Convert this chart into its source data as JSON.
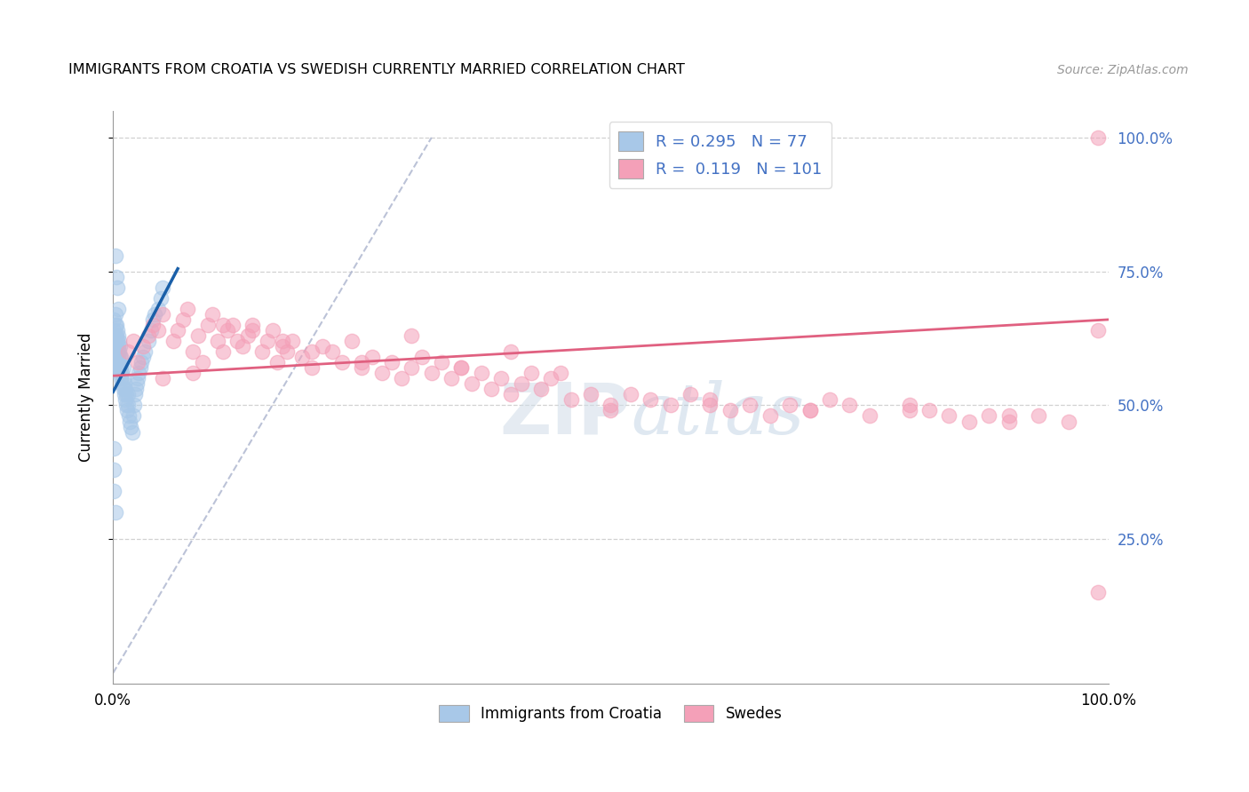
{
  "title": "IMMIGRANTS FROM CROATIA VS SWEDISH CURRENTLY MARRIED CORRELATION CHART",
  "source": "Source: ZipAtlas.com",
  "ylabel": "Currently Married",
  "legend_label1": "Immigrants from Croatia",
  "legend_label2": "Swedes",
  "R1": 0.295,
  "N1": 77,
  "R2": 0.119,
  "N2": 101,
  "watermark_zip": "ZIP",
  "watermark_atlas": "atlas",
  "color_blue": "#a8c8e8",
  "color_pink": "#f4a0b8",
  "color_blue_line": "#1a5fa8",
  "color_pink_line": "#e06080",
  "color_ref_line": "#b0b8d0",
  "xlim": [
    0.0,
    1.0
  ],
  "ylim": [
    -0.02,
    1.05
  ],
  "blue_x": [
    0.001,
    0.001,
    0.001,
    0.001,
    0.001,
    0.002,
    0.002,
    0.002,
    0.002,
    0.002,
    0.003,
    0.003,
    0.003,
    0.003,
    0.003,
    0.004,
    0.004,
    0.004,
    0.004,
    0.005,
    0.005,
    0.005,
    0.005,
    0.006,
    0.006,
    0.006,
    0.006,
    0.007,
    0.007,
    0.007,
    0.008,
    0.008,
    0.008,
    0.009,
    0.009,
    0.01,
    0.01,
    0.01,
    0.011,
    0.011,
    0.012,
    0.012,
    0.013,
    0.013,
    0.014,
    0.015,
    0.015,
    0.016,
    0.017,
    0.018,
    0.019,
    0.02,
    0.021,
    0.022,
    0.023,
    0.024,
    0.025,
    0.026,
    0.027,
    0.028,
    0.03,
    0.032,
    0.035,
    0.038,
    0.04,
    0.042,
    0.045,
    0.048,
    0.05,
    0.002,
    0.001,
    0.001,
    0.001,
    0.002,
    0.003,
    0.004,
    0.005
  ],
  "blue_y": [
    0.58,
    0.6,
    0.62,
    0.64,
    0.66,
    0.59,
    0.61,
    0.63,
    0.65,
    0.67,
    0.57,
    0.59,
    0.61,
    0.63,
    0.65,
    0.58,
    0.6,
    0.62,
    0.64,
    0.57,
    0.59,
    0.61,
    0.63,
    0.56,
    0.58,
    0.6,
    0.62,
    0.57,
    0.59,
    0.61,
    0.55,
    0.57,
    0.59,
    0.54,
    0.56,
    0.53,
    0.55,
    0.57,
    0.52,
    0.54,
    0.51,
    0.53,
    0.5,
    0.52,
    0.49,
    0.5,
    0.52,
    0.48,
    0.47,
    0.46,
    0.45,
    0.48,
    0.5,
    0.52,
    0.53,
    0.54,
    0.55,
    0.56,
    0.57,
    0.58,
    0.59,
    0.6,
    0.62,
    0.64,
    0.66,
    0.67,
    0.68,
    0.7,
    0.72,
    0.3,
    0.34,
    0.38,
    0.42,
    0.78,
    0.74,
    0.72,
    0.68
  ],
  "pink_x": [
    0.015,
    0.02,
    0.025,
    0.03,
    0.035,
    0.04,
    0.045,
    0.05,
    0.06,
    0.065,
    0.07,
    0.075,
    0.08,
    0.085,
    0.09,
    0.095,
    0.1,
    0.105,
    0.11,
    0.115,
    0.12,
    0.125,
    0.13,
    0.135,
    0.14,
    0.15,
    0.155,
    0.16,
    0.165,
    0.17,
    0.175,
    0.18,
    0.19,
    0.2,
    0.21,
    0.22,
    0.23,
    0.24,
    0.25,
    0.26,
    0.27,
    0.28,
    0.29,
    0.3,
    0.31,
    0.32,
    0.33,
    0.34,
    0.35,
    0.36,
    0.37,
    0.38,
    0.39,
    0.4,
    0.41,
    0.42,
    0.43,
    0.44,
    0.46,
    0.48,
    0.5,
    0.52,
    0.54,
    0.56,
    0.58,
    0.6,
    0.62,
    0.64,
    0.66,
    0.68,
    0.7,
    0.72,
    0.74,
    0.76,
    0.8,
    0.82,
    0.84,
    0.86,
    0.88,
    0.9,
    0.93,
    0.96,
    0.99,
    0.05,
    0.08,
    0.11,
    0.14,
    0.17,
    0.2,
    0.25,
    0.3,
    0.35,
    0.4,
    0.45,
    0.5,
    0.6,
    0.7,
    0.8,
    0.9,
    0.99,
    0.99
  ],
  "pink_y": [
    0.6,
    0.62,
    0.58,
    0.61,
    0.63,
    0.65,
    0.64,
    0.67,
    0.62,
    0.64,
    0.66,
    0.68,
    0.6,
    0.63,
    0.58,
    0.65,
    0.67,
    0.62,
    0.6,
    0.64,
    0.65,
    0.62,
    0.61,
    0.63,
    0.65,
    0.6,
    0.62,
    0.64,
    0.58,
    0.61,
    0.6,
    0.62,
    0.59,
    0.57,
    0.61,
    0.6,
    0.58,
    0.62,
    0.57,
    0.59,
    0.56,
    0.58,
    0.55,
    0.57,
    0.59,
    0.56,
    0.58,
    0.55,
    0.57,
    0.54,
    0.56,
    0.53,
    0.55,
    0.52,
    0.54,
    0.56,
    0.53,
    0.55,
    0.51,
    0.52,
    0.5,
    0.52,
    0.51,
    0.5,
    0.52,
    0.51,
    0.49,
    0.5,
    0.48,
    0.5,
    0.49,
    0.51,
    0.5,
    0.48,
    0.5,
    0.49,
    0.48,
    0.47,
    0.48,
    0.47,
    0.48,
    0.47,
    0.64,
    0.55,
    0.56,
    0.65,
    0.64,
    0.62,
    0.6,
    0.58,
    0.63,
    0.57,
    0.6,
    0.56,
    0.49,
    0.5,
    0.49,
    0.49,
    0.48,
    1.0,
    0.15
  ]
}
